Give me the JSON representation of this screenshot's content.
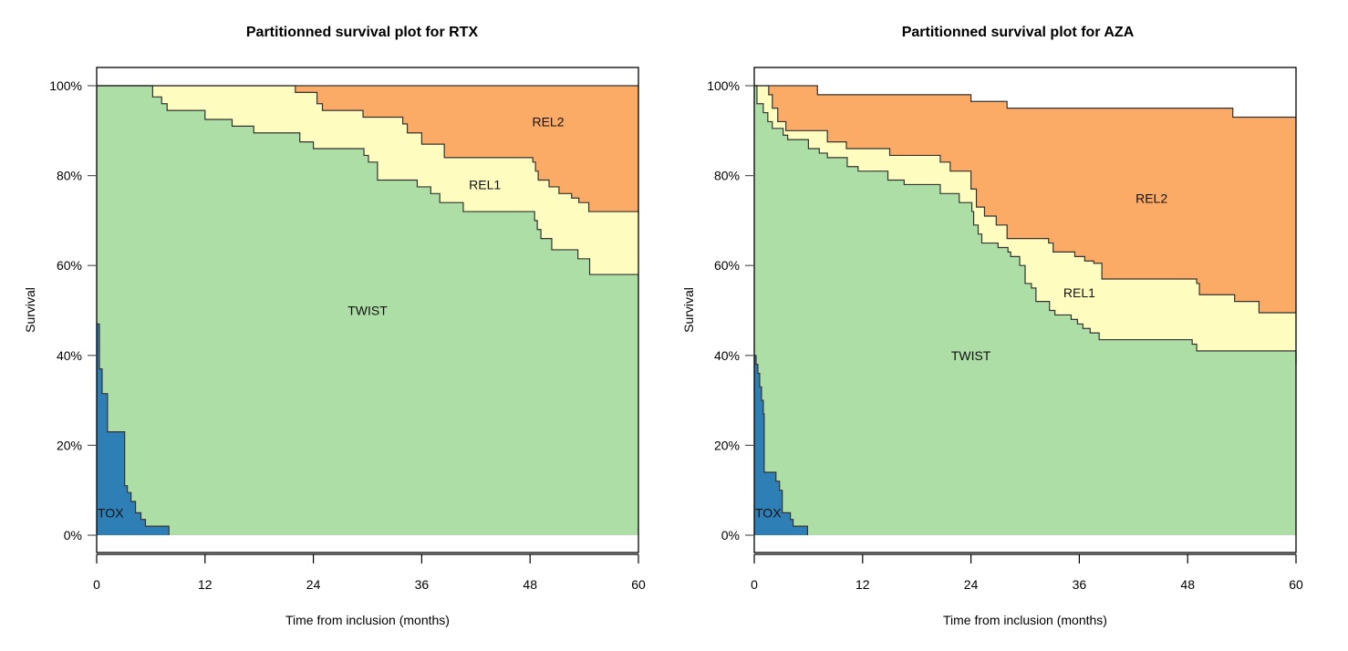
{
  "chart_data": [
    {
      "type": "area",
      "subtype": "stacked step survival (partitioned)",
      "title": "Partitionned survival plot for RTX",
      "xlabel": "Time from inclusion (months)",
      "ylabel": "Survival",
      "xlim": [
        0,
        60
      ],
      "ylim": [
        0,
        100
      ],
      "xticks": [
        "0",
        "12",
        "24",
        "36",
        "48",
        "60"
      ],
      "xtick_values": [
        0,
        12,
        24,
        36,
        48,
        60
      ],
      "yticks": [
        "0%",
        "20%",
        "40%",
        "60%",
        "80%",
        "100%"
      ],
      "ytick_values": [
        0,
        20,
        40,
        60,
        80,
        100
      ],
      "grid": false,
      "legend": "inline-labels",
      "series": [
        {
          "name": "TOX",
          "color": "#2f7fb7",
          "steps": [
            [
              0,
              47
            ],
            [
              0.3,
              37
            ],
            [
              0.6,
              31.5
            ],
            [
              1.2,
              23
            ],
            [
              3.1,
              11
            ],
            [
              3.4,
              9.5
            ],
            [
              3.8,
              7.5
            ],
            [
              4.3,
              5
            ],
            [
              4.9,
              3.5
            ],
            [
              5.4,
              2
            ],
            [
              8,
              0
            ]
          ]
        },
        {
          "name": "TWIST",
          "color": "#addea6",
          "steps": [
            [
              0,
              100
            ],
            [
              6.2,
              97.5
            ],
            [
              7.2,
              96
            ],
            [
              7.8,
              94.5
            ],
            [
              12,
              92.5
            ],
            [
              15,
              91
            ],
            [
              17.4,
              89.5
            ],
            [
              22.5,
              87.5
            ],
            [
              24,
              86
            ],
            [
              24.6,
              86
            ],
            [
              29.6,
              84.5
            ],
            [
              30.1,
              83
            ],
            [
              31.1,
              79
            ],
            [
              35.5,
              77.5
            ],
            [
              37,
              76
            ],
            [
              38,
              74
            ],
            [
              40.6,
              72
            ],
            [
              48.5,
              70
            ],
            [
              48.8,
              68
            ],
            [
              49.2,
              66
            ],
            [
              50.4,
              63.5
            ],
            [
              53.3,
              61.5
            ],
            [
              54.6,
              58
            ],
            [
              60,
              58
            ]
          ]
        },
        {
          "name": "REL1",
          "color": "#fefcbf",
          "steps": [
            [
              0,
              100
            ],
            [
              6.2,
              100
            ],
            [
              7.6,
              100
            ],
            [
              20,
              100
            ],
            [
              22,
              98.5
            ],
            [
              24.4,
              96
            ],
            [
              25,
              94.5
            ],
            [
              29.5,
              93
            ],
            [
              33.9,
              91.5
            ],
            [
              34.4,
              89.5
            ],
            [
              36,
              87
            ],
            [
              38.5,
              84
            ],
            [
              42.2,
              84
            ],
            [
              48.3,
              83
            ],
            [
              48.6,
              81
            ],
            [
              48.9,
              79
            ],
            [
              50.1,
              77.5
            ],
            [
              51.2,
              76
            ],
            [
              52.6,
              75
            ],
            [
              53.4,
              74
            ],
            [
              54.5,
              72
            ],
            [
              60,
              72
            ]
          ]
        },
        {
          "name": "REL2",
          "color": "#fbab66",
          "steps": [
            [
              0,
              100
            ],
            [
              60,
              100
            ]
          ]
        }
      ],
      "annotations": [
        {
          "text": "TOX",
          "x": 1.5,
          "y": 5
        },
        {
          "text": "TWIST",
          "x": 30,
          "y": 50
        },
        {
          "text": "REL1",
          "x": 43,
          "y": 78
        },
        {
          "text": "REL2",
          "x": 50,
          "y": 92
        }
      ]
    },
    {
      "type": "area",
      "subtype": "stacked step survival (partitioned)",
      "title": "Partitionned survival plot for AZA",
      "xlabel": "Time from inclusion (months)",
      "ylabel": "Survival",
      "xlim": [
        0,
        60
      ],
      "ylim": [
        0,
        100
      ],
      "xticks": [
        "0",
        "12",
        "24",
        "36",
        "48",
        "60"
      ],
      "xtick_values": [
        0,
        12,
        24,
        36,
        48,
        60
      ],
      "yticks": [
        "0%",
        "20%",
        "40%",
        "60%",
        "80%",
        "100%"
      ],
      "ytick_values": [
        0,
        20,
        40,
        60,
        80,
        100
      ],
      "grid": false,
      "legend": "inline-labels",
      "series": [
        {
          "name": "TOX",
          "color": "#2f7fb7",
          "steps": [
            [
              0,
              40
            ],
            [
              0.2,
              38
            ],
            [
              0.4,
              36
            ],
            [
              0.6,
              33
            ],
            [
              0.8,
              30
            ],
            [
              1,
              27
            ],
            [
              1.1,
              14
            ],
            [
              2.4,
              12
            ],
            [
              2.8,
              10
            ],
            [
              3.1,
              5
            ],
            [
              4,
              3.5
            ],
            [
              4.3,
              2
            ],
            [
              5.9,
              0
            ]
          ]
        },
        {
          "name": "TWIST",
          "color": "#addea6",
          "steps": [
            [
              0,
              100
            ],
            [
              0.3,
              96
            ],
            [
              1,
              94
            ],
            [
              1.5,
              92
            ],
            [
              2,
              90.5
            ],
            [
              3.2,
              89
            ],
            [
              3.7,
              88
            ],
            [
              6,
              86
            ],
            [
              7.2,
              85
            ],
            [
              8.1,
              84
            ],
            [
              10.3,
              82
            ],
            [
              11.5,
              81
            ],
            [
              14.8,
              79
            ],
            [
              16.6,
              78
            ],
            [
              20.6,
              76
            ],
            [
              22.7,
              74
            ],
            [
              24.1,
              72
            ],
            [
              24.3,
              69
            ],
            [
              24.8,
              67
            ],
            [
              25.2,
              65
            ],
            [
              27,
              64
            ],
            [
              28.1,
              63
            ],
            [
              28.4,
              62
            ],
            [
              29.4,
              60
            ],
            [
              30,
              56
            ],
            [
              30.7,
              55
            ],
            [
              31.2,
              52
            ],
            [
              32.7,
              50
            ],
            [
              33.3,
              49
            ],
            [
              35.1,
              48
            ],
            [
              35.8,
              47
            ],
            [
              36.4,
              46
            ],
            [
              37.2,
              45
            ],
            [
              38.2,
              43.5
            ],
            [
              48.5,
              42.5
            ],
            [
              49,
              41
            ],
            [
              60,
              38
            ],
            [
              60,
              38
            ]
          ]
        },
        {
          "name": "REL1",
          "color": "#fefcbf",
          "steps": [
            [
              0,
              100
            ],
            [
              1.6,
              98
            ],
            [
              2,
              95
            ],
            [
              2.6,
              92
            ],
            [
              3.5,
              90
            ],
            [
              5.5,
              90
            ],
            [
              8.1,
              87.5
            ],
            [
              10.2,
              86
            ],
            [
              15,
              84.5
            ],
            [
              20.6,
              83
            ],
            [
              21.7,
              81
            ],
            [
              24,
              77
            ],
            [
              24.6,
              73
            ],
            [
              25.5,
              71
            ],
            [
              26.8,
              69
            ],
            [
              28,
              66
            ],
            [
              32.6,
              65
            ],
            [
              33.1,
              63
            ],
            [
              35.5,
              62
            ],
            [
              36.6,
              61
            ],
            [
              37.6,
              60.5
            ],
            [
              38.5,
              57
            ],
            [
              49,
              56
            ],
            [
              49.3,
              53.5
            ],
            [
              53.2,
              52
            ],
            [
              55.9,
              49.5
            ],
            [
              60,
              49.5
            ]
          ]
        },
        {
          "name": "REL2",
          "color": "#fbab66",
          "steps": [
            [
              0,
              100
            ],
            [
              7,
              98
            ],
            [
              24,
              96.5
            ],
            [
              28,
              95
            ],
            [
              53,
              93
            ],
            [
              60,
              93
            ]
          ]
        }
      ],
      "annotations": [
        {
          "text": "TOX",
          "x": 1.5,
          "y": 5
        },
        {
          "text": "TWIST",
          "x": 24,
          "y": 40
        },
        {
          "text": "REL1",
          "x": 36,
          "y": 54
        },
        {
          "text": "REL2",
          "x": 44,
          "y": 75
        }
      ]
    }
  ]
}
